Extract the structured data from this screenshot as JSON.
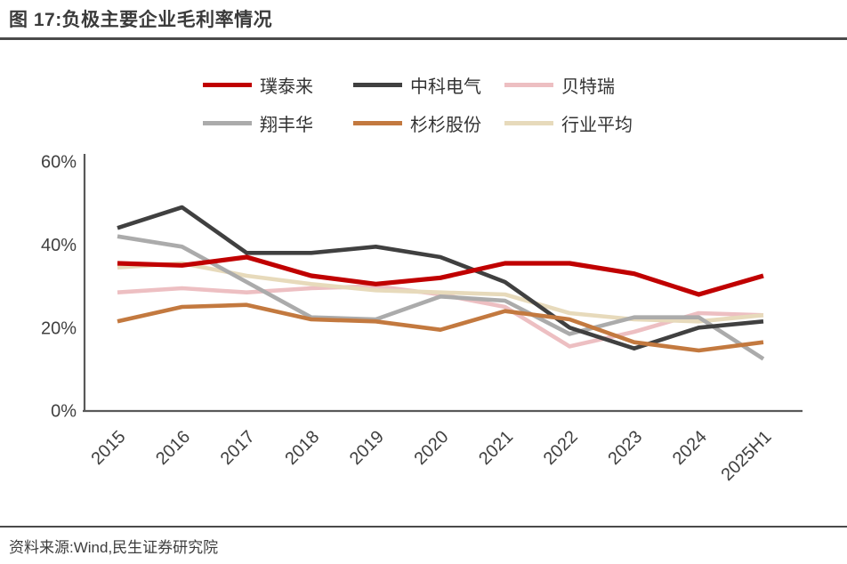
{
  "header": {
    "title": "图 17:负极主要企业毛利率情况"
  },
  "footer": {
    "source": "资料来源:Wind,民生证券研究院"
  },
  "colors": {
    "title_text": "#3b3b3b",
    "rule": "#4a4a4a",
    "axis": "#595959",
    "tick_text": "#404040",
    "legend_text": "#333333"
  },
  "chart_data": {
    "type": "line",
    "title": "负极主要企业毛利率情况",
    "xlabel": "",
    "ylabel": "毛利率",
    "ylim": [
      0,
      60
    ],
    "ytick_values": [
      0,
      20,
      40,
      60
    ],
    "ytick_labels": [
      "0%",
      "20%",
      "40%",
      "60%"
    ],
    "grid": false,
    "legend_position": "top-center",
    "categories": [
      "2015",
      "2016",
      "2017",
      "2018",
      "2019",
      "2020",
      "2021",
      "2022",
      "2023",
      "2024",
      "2025H1"
    ],
    "series": [
      {
        "name": "璞泰来",
        "color": "#c00000",
        "values": [
          35.5,
          35.0,
          37.0,
          32.5,
          30.5,
          32.0,
          35.5,
          35.5,
          33.0,
          28.0,
          32.5
        ]
      },
      {
        "name": "中科电气",
        "color": "#404040",
        "values": [
          44.0,
          49.0,
          38.0,
          38.0,
          39.5,
          37.0,
          31.0,
          20.0,
          15.0,
          20.0,
          21.5
        ]
      },
      {
        "name": "贝特瑞",
        "color": "#edbfc2",
        "values": [
          28.5,
          29.5,
          28.5,
          29.5,
          30.0,
          28.0,
          25.0,
          15.5,
          19.0,
          23.5,
          23.0
        ]
      },
      {
        "name": "翔丰华",
        "color": "#ababab",
        "values": [
          42.0,
          39.5,
          31.0,
          22.5,
          22.0,
          27.5,
          26.5,
          18.5,
          22.5,
          22.5,
          12.5
        ]
      },
      {
        "name": "杉杉股份",
        "color": "#c3793f",
        "values": [
          21.5,
          25.0,
          25.5,
          22.0,
          21.5,
          19.5,
          24.0,
          22.0,
          16.5,
          14.5,
          16.5
        ]
      },
      {
        "name": "行业平均",
        "color": "#e7dabb",
        "values": [
          34.5,
          35.5,
          32.5,
          30.5,
          29.0,
          28.5,
          28.0,
          23.5,
          22.0,
          21.5,
          23.0
        ]
      }
    ]
  }
}
